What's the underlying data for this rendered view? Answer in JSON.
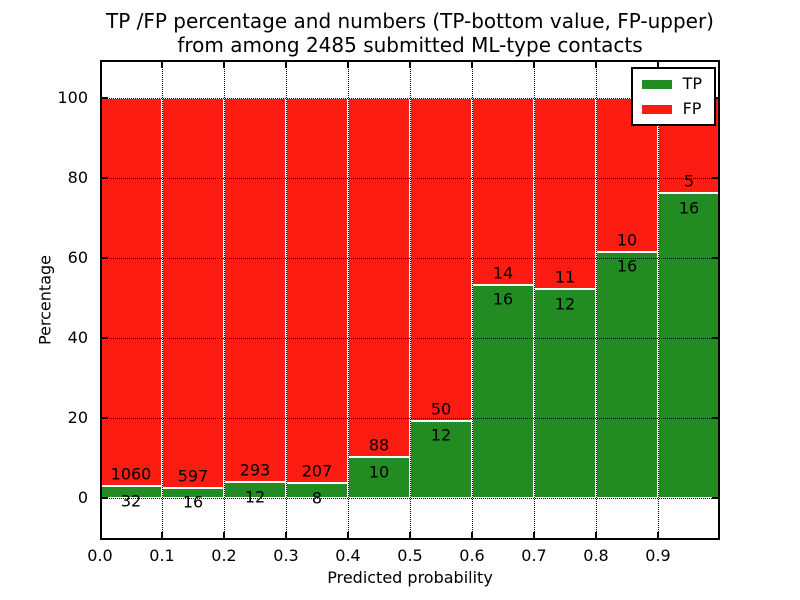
{
  "title": {
    "line1": "TP /FP percentage and numbers (TP-bottom value, FP-upper)",
    "line2": "from among 2485 submitted ML-type contacts"
  },
  "axes": {
    "xlabel": "Predicted probability",
    "ylabel": "Percentage",
    "x_ticks": [
      "0.0",
      "0.1",
      "0.2",
      "0.3",
      "0.4",
      "0.5",
      "0.6",
      "0.7",
      "0.8",
      "0.9"
    ],
    "y_ticks": [
      "0",
      "20",
      "40",
      "60",
      "80",
      "100"
    ]
  },
  "legend": {
    "items": [
      {
        "label": "TP",
        "color": "#228b22"
      },
      {
        "label": "FP",
        "color": "#fd1c12"
      }
    ],
    "position": "upper right"
  },
  "colors": {
    "tp_green": "#228b22",
    "fp_red": "#fd1c12",
    "grid": "#000000",
    "background": "#ffffff",
    "bar_edge": "#ffffff"
  },
  "chart_data": {
    "type": "bar",
    "stacked": true,
    "normalized": "each bin scaled to 100%",
    "title": "TP /FP percentage and numbers (TP-bottom value, FP-upper) from among 2485 submitted ML-type contacts",
    "xlabel": "Predicted probability",
    "ylabel": "Percentage",
    "total_contacts": 2485,
    "bin_width": 0.1,
    "bin_starts": [
      0.0,
      0.1,
      0.2,
      0.3,
      0.4,
      0.5,
      0.6,
      0.7,
      0.8,
      0.9
    ],
    "categories": [
      "0.0-0.1",
      "0.1-0.2",
      "0.2-0.3",
      "0.3-0.4",
      "0.4-0.5",
      "0.5-0.6",
      "0.6-0.7",
      "0.7-0.8",
      "0.8-0.9",
      "0.9-1.0"
    ],
    "series": [
      {
        "name": "TP",
        "color": "#228b22",
        "counts": [
          32,
          16,
          12,
          8,
          10,
          12,
          16,
          12,
          16,
          16
        ]
      },
      {
        "name": "FP",
        "color": "#fd1c12",
        "counts": [
          1060,
          597,
          293,
          207,
          88,
          50,
          14,
          11,
          10,
          5
        ]
      }
    ],
    "tp_percent_by_bin": [
      2.93,
      2.61,
      3.93,
      3.72,
      10.2,
      19.35,
      53.33,
      52.17,
      61.54,
      76.19
    ],
    "xlim": [
      0.0,
      1.0
    ],
    "ylim": [
      -10.5,
      109.5
    ],
    "grid": "dotted, both axes, at major ticks",
    "legend_position": "upper right"
  }
}
